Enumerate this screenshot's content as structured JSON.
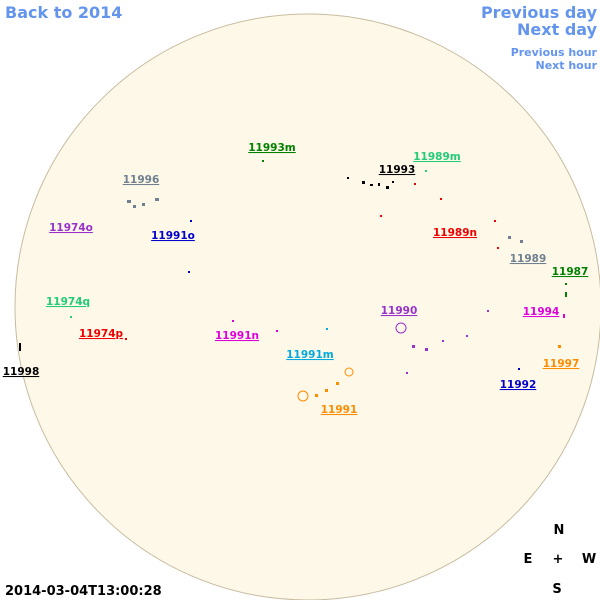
{
  "nav": {
    "back_year": "Back to 2014",
    "previous_day": "Previous day",
    "next_day": "Next day",
    "previous_hour": "Previous hour",
    "next_hour": "Next hour"
  },
  "timestamp": "2014-03-04T13:00:28",
  "compass": {
    "north": "N",
    "east": "E",
    "center": "+",
    "west": "W",
    "south": "S"
  },
  "regions": [
    {
      "label": "11993m",
      "color": "#008000"
    },
    {
      "label": "11989m",
      "color": "#22cc77"
    },
    {
      "label": "11993",
      "color": "#000000"
    },
    {
      "label": "11996",
      "color": "#708090"
    },
    {
      "label": "11974o",
      "color": "#9932cc"
    },
    {
      "label": "11991o",
      "color": "#0000cd"
    },
    {
      "label": "11989n",
      "color": "#ee0000"
    },
    {
      "label": "11989",
      "color": "#708090"
    },
    {
      "label": "11987",
      "color": "#008000"
    },
    {
      "label": "11974q",
      "color": "#22cc77"
    },
    {
      "label": "11990",
      "color": "#9932cc"
    },
    {
      "label": "11994",
      "color": "#dd00dd"
    },
    {
      "label": "11974p",
      "color": "#ee0000"
    },
    {
      "label": "11991n",
      "color": "#dd00dd"
    },
    {
      "label": "11991m",
      "color": "#00aadd"
    },
    {
      "label": "11997",
      "color": "#ff8c00"
    },
    {
      "label": "11998",
      "color": "#000000"
    },
    {
      "label": "11992",
      "color": "#0000cd"
    },
    {
      "label": "11991",
      "color": "#ff8c00"
    }
  ]
}
